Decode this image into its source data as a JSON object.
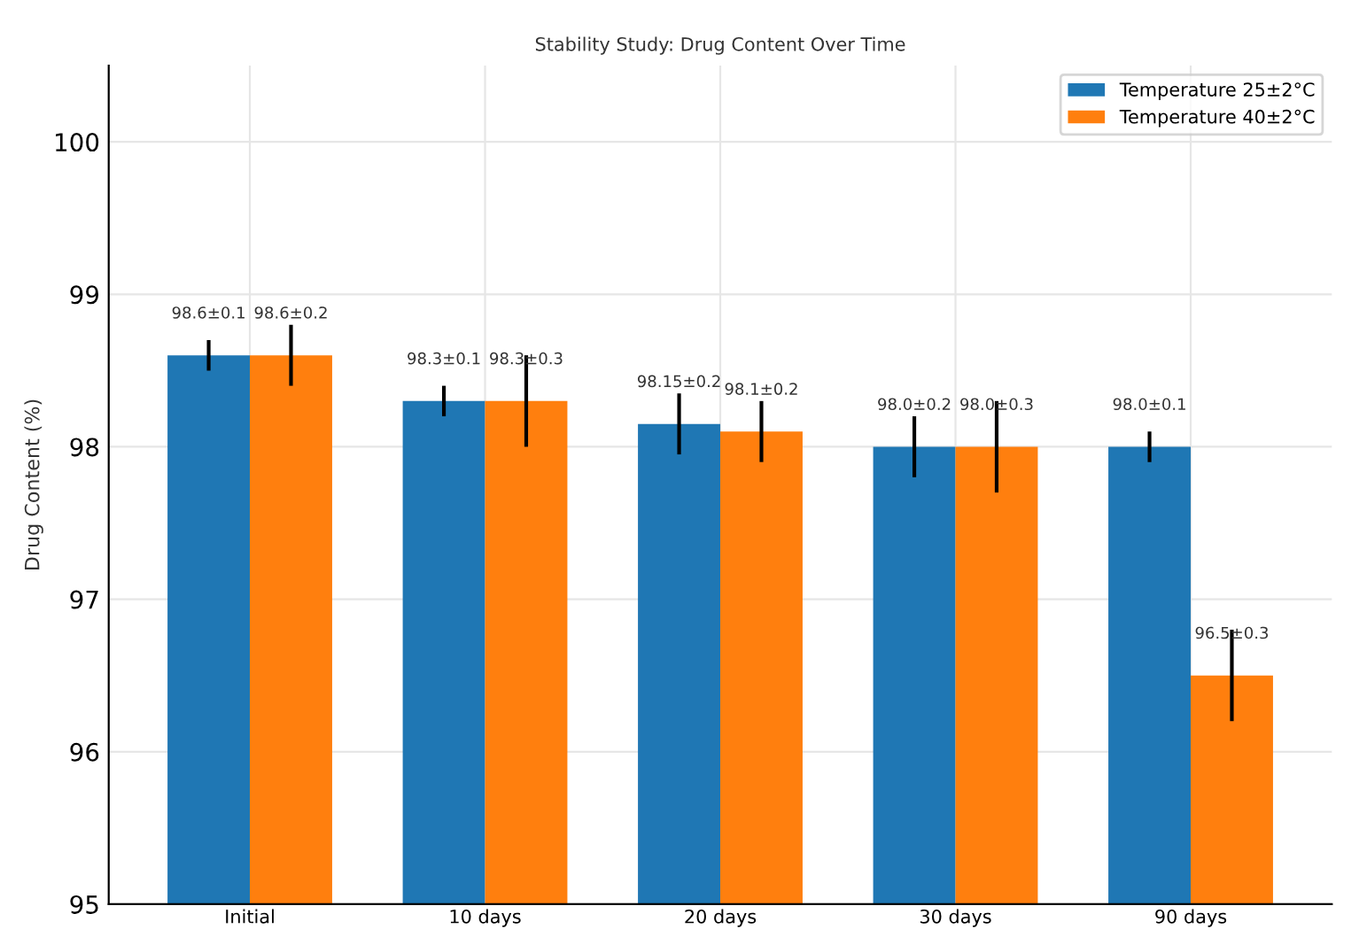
{
  "chart_data": {
    "type": "bar",
    "title": "Stability Study: Drug Content Over Time",
    "ylabel": "Drug Content (%)",
    "categories": [
      "Initial",
      "10 days",
      "20 days",
      "30 days",
      "90 days"
    ],
    "series": [
      {
        "name": "Temperature 25±2°C",
        "color": "#1f77b4",
        "values": [
          98.6,
          98.3,
          98.15,
          98.0,
          98.0
        ],
        "errors": [
          0.1,
          0.1,
          0.2,
          0.2,
          0.1
        ],
        "value_labels": [
          "98.6±0.1",
          "98.3±0.1",
          "98.15±0.2",
          "98.0±0.2",
          "98.0±0.1"
        ]
      },
      {
        "name": "Temperature 40±2°C",
        "color": "#ff7f0e",
        "values": [
          98.6,
          98.3,
          98.1,
          98.0,
          96.5
        ],
        "errors": [
          0.2,
          0.3,
          0.2,
          0.3,
          0.3
        ],
        "value_labels": [
          "98.6±0.2",
          "98.3±0.3",
          "98.1±0.2",
          "98.0±0.3",
          "96.5±0.3"
        ]
      }
    ],
    "ylim": [
      95,
      100.5
    ],
    "yticks": [
      95,
      96,
      97,
      98,
      99,
      100
    ],
    "grid": true,
    "legend": "top right"
  }
}
